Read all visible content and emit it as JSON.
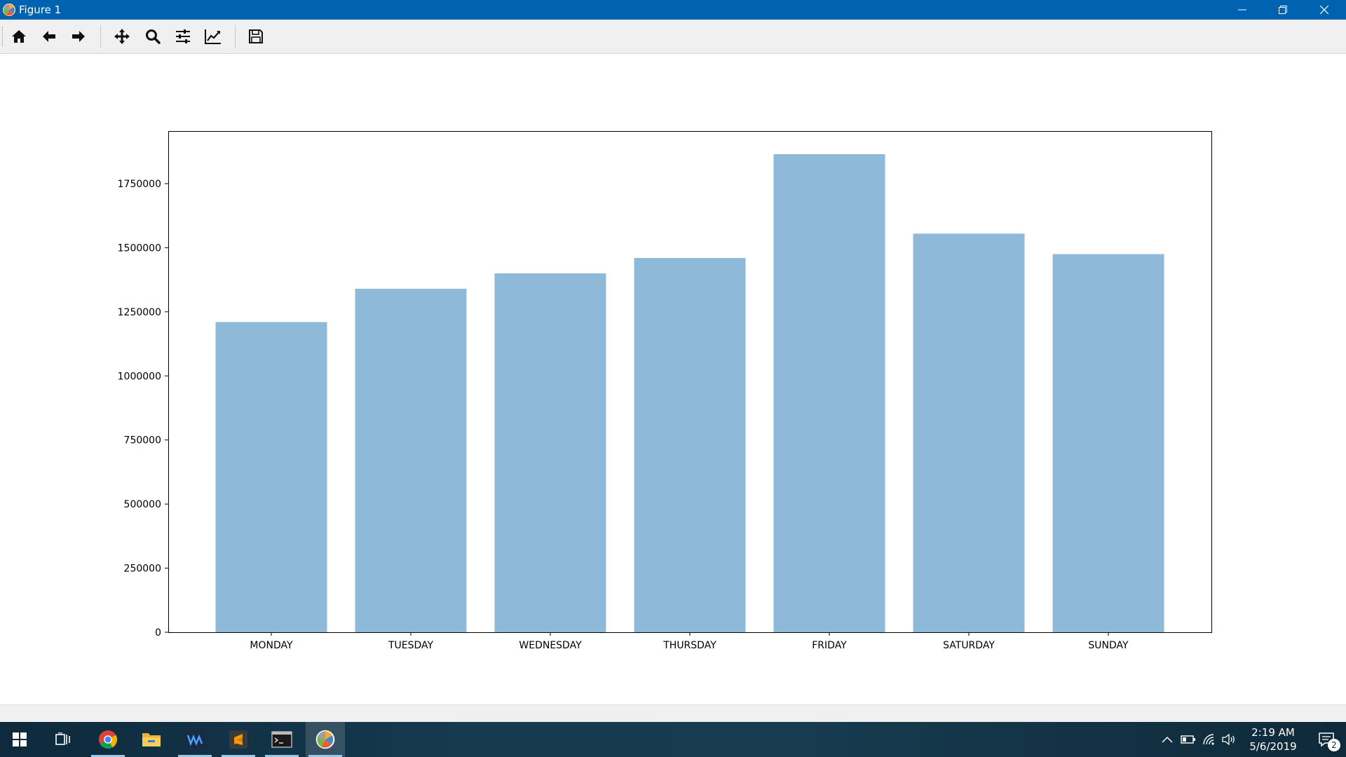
{
  "window": {
    "title": "Figure 1",
    "controls": [
      "minimize",
      "restore",
      "close"
    ]
  },
  "toolbar": {
    "tools": [
      {
        "name": "home",
        "icon": "home-icon"
      },
      {
        "name": "back",
        "icon": "arrow-left-icon"
      },
      {
        "name": "forward",
        "icon": "arrow-right-icon"
      },
      {
        "name": "pan",
        "icon": "move-icon"
      },
      {
        "name": "zoom",
        "icon": "magnifier-icon"
      },
      {
        "name": "configure-subplots",
        "icon": "sliders-icon"
      },
      {
        "name": "edit-axis",
        "icon": "chart-line-icon"
      },
      {
        "name": "save",
        "icon": "floppy-disk-icon"
      }
    ]
  },
  "chart_data": {
    "type": "bar",
    "categories": [
      "MONDAY",
      "TUESDAY",
      "WEDNESDAY",
      "THURSDAY",
      "FRIDAY",
      "SATURDAY",
      "SUNDAY"
    ],
    "values": [
      1210000,
      1340000,
      1400000,
      1460000,
      1865000,
      1555000,
      1475000
    ],
    "yticks": [
      0,
      250000,
      500000,
      750000,
      1000000,
      1250000,
      1500000,
      1750000
    ],
    "ytick_labels": [
      "0",
      "250000",
      "500000",
      "750000",
      "1000000",
      "1250000",
      "1500000",
      "1750000"
    ],
    "ylim": [
      0,
      1955000
    ],
    "bar_color": "#8fb9d9",
    "title": "",
    "xlabel": "",
    "ylabel": "",
    "grid": false
  },
  "taskbar": {
    "apps": [
      {
        "name": "task-view",
        "icon": "task-view-icon"
      },
      {
        "name": "chrome",
        "icon": "chrome-icon"
      },
      {
        "name": "file-explorer",
        "icon": "folder-icon"
      },
      {
        "name": "wavesurfer",
        "icon": "wave-app-icon"
      },
      {
        "name": "sublime-text",
        "icon": "sublime-icon"
      },
      {
        "name": "terminal",
        "icon": "terminal-icon"
      },
      {
        "name": "matplotlib-figure",
        "icon": "matplotlib-icon"
      }
    ],
    "clock": {
      "time": "2:19 AM",
      "date": "5/6/2019"
    },
    "notification_count": "2"
  }
}
